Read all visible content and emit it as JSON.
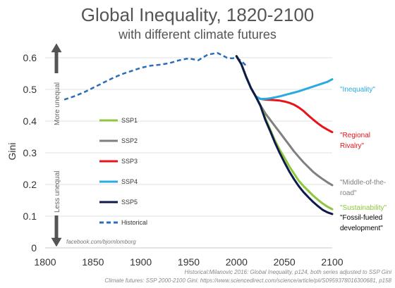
{
  "chart_data": {
    "type": "line",
    "title": "Global Inequality, 1820-2100",
    "subtitle": "with different climate futures",
    "ylabel": "Gini",
    "xlim": [
      1800,
      2100
    ],
    "ylim": [
      0,
      0.6
    ],
    "x_ticks": [
      1800,
      1850,
      1900,
      1950,
      2000,
      2050,
      2100
    ],
    "y_ticks": [
      0,
      0.1,
      0.2,
      0.3,
      0.4,
      0.5,
      0.6
    ],
    "y_tick_labels": [
      "0",
      "0.1",
      "0.2",
      "0.3",
      "0.4",
      "0.5",
      "0.6"
    ],
    "arrow_labels": {
      "up": "More unequal",
      "down": "Less unequal"
    },
    "credit": "facebook.com/bjornlomborg",
    "sources": [
      "Historical:Milanovic 2016: Global Inequality, p124, both series adjusted to SSP Gini",
      "Climate futures: SSP 2000-2100 Gini: https://www.sciencedirect.com/science/article/pii/S0959378016300681, p158"
    ],
    "legend_position": "center-left",
    "series": [
      {
        "name": "SSP1",
        "color": "#8dc63f",
        "style": "solid",
        "annotation": "\"Sustainability\"",
        "points": [
          [
            2000,
            0.605
          ],
          [
            2005,
            0.58
          ],
          [
            2010,
            0.54
          ],
          [
            2015,
            0.505
          ],
          [
            2020,
            0.478
          ],
          [
            2025,
            0.45
          ],
          [
            2030,
            0.41
          ],
          [
            2035,
            0.375
          ],
          [
            2040,
            0.34
          ],
          [
            2045,
            0.31
          ],
          [
            2050,
            0.285
          ],
          [
            2055,
            0.258
          ],
          [
            2060,
            0.235
          ],
          [
            2065,
            0.212
          ],
          [
            2070,
            0.195
          ],
          [
            2075,
            0.18
          ],
          [
            2080,
            0.165
          ],
          [
            2085,
            0.152
          ],
          [
            2090,
            0.14
          ],
          [
            2095,
            0.13
          ],
          [
            2100,
            0.122
          ]
        ]
      },
      {
        "name": "SSP2",
        "color": "#808080",
        "style": "solid",
        "annotation": "\"Middle-of-the-road\"",
        "points": [
          [
            2000,
            0.605
          ],
          [
            2005,
            0.58
          ],
          [
            2010,
            0.54
          ],
          [
            2015,
            0.505
          ],
          [
            2020,
            0.478
          ],
          [
            2025,
            0.45
          ],
          [
            2030,
            0.425
          ],
          [
            2035,
            0.405
          ],
          [
            2040,
            0.385
          ],
          [
            2045,
            0.365
          ],
          [
            2050,
            0.345
          ],
          [
            2055,
            0.325
          ],
          [
            2060,
            0.305
          ],
          [
            2065,
            0.287
          ],
          [
            2070,
            0.27
          ],
          [
            2075,
            0.255
          ],
          [
            2080,
            0.24
          ],
          [
            2085,
            0.228
          ],
          [
            2090,
            0.217
          ],
          [
            2095,
            0.207
          ],
          [
            2100,
            0.198
          ]
        ]
      },
      {
        "name": "SSP3",
        "color": "#e8131b",
        "style": "solid",
        "annotation": "\"Regional Rivalry\"",
        "points": [
          [
            2000,
            0.605
          ],
          [
            2005,
            0.58
          ],
          [
            2010,
            0.54
          ],
          [
            2015,
            0.505
          ],
          [
            2020,
            0.478
          ],
          [
            2025,
            0.47
          ],
          [
            2030,
            0.468
          ],
          [
            2035,
            0.467
          ],
          [
            2040,
            0.466
          ],
          [
            2045,
            0.465
          ],
          [
            2050,
            0.462
          ],
          [
            2055,
            0.458
          ],
          [
            2060,
            0.452
          ],
          [
            2065,
            0.443
          ],
          [
            2070,
            0.432
          ],
          [
            2075,
            0.418
          ],
          [
            2080,
            0.405
          ],
          [
            2085,
            0.393
          ],
          [
            2090,
            0.382
          ],
          [
            2095,
            0.373
          ],
          [
            2100,
            0.365
          ]
        ]
      },
      {
        "name": "SSP4",
        "color": "#29abe2",
        "style": "solid",
        "annotation": "\"Inequality\"",
        "points": [
          [
            2000,
            0.605
          ],
          [
            2005,
            0.58
          ],
          [
            2010,
            0.54
          ],
          [
            2015,
            0.505
          ],
          [
            2020,
            0.478
          ],
          [
            2025,
            0.47
          ],
          [
            2030,
            0.47
          ],
          [
            2035,
            0.472
          ],
          [
            2040,
            0.475
          ],
          [
            2045,
            0.478
          ],
          [
            2050,
            0.482
          ],
          [
            2055,
            0.486
          ],
          [
            2060,
            0.49
          ],
          [
            2065,
            0.494
          ],
          [
            2070,
            0.499
          ],
          [
            2075,
            0.504
          ],
          [
            2080,
            0.509
          ],
          [
            2085,
            0.514
          ],
          [
            2090,
            0.519
          ],
          [
            2095,
            0.524
          ],
          [
            2100,
            0.532
          ]
        ]
      },
      {
        "name": "SSP5",
        "color": "#0d1a4a",
        "style": "solid",
        "annotation": "\"Fossil-fueled development\"",
        "points": [
          [
            2000,
            0.605
          ],
          [
            2005,
            0.58
          ],
          [
            2010,
            0.54
          ],
          [
            2015,
            0.505
          ],
          [
            2020,
            0.478
          ],
          [
            2025,
            0.448
          ],
          [
            2030,
            0.405
          ],
          [
            2035,
            0.37
          ],
          [
            2040,
            0.333
          ],
          [
            2045,
            0.3
          ],
          [
            2050,
            0.27
          ],
          [
            2055,
            0.242
          ],
          [
            2060,
            0.217
          ],
          [
            2065,
            0.195
          ],
          [
            2070,
            0.176
          ],
          [
            2075,
            0.16
          ],
          [
            2080,
            0.145
          ],
          [
            2085,
            0.132
          ],
          [
            2090,
            0.12
          ],
          [
            2095,
            0.112
          ],
          [
            2100,
            0.107
          ]
        ]
      },
      {
        "name": "Historical",
        "color": "#2a6ebb",
        "style": "dashed",
        "annotation": "",
        "points": [
          [
            1820,
            0.468
          ],
          [
            1830,
            0.478
          ],
          [
            1840,
            0.49
          ],
          [
            1850,
            0.505
          ],
          [
            1860,
            0.52
          ],
          [
            1870,
            0.535
          ],
          [
            1880,
            0.548
          ],
          [
            1890,
            0.558
          ],
          [
            1900,
            0.568
          ],
          [
            1910,
            0.575
          ],
          [
            1920,
            0.578
          ],
          [
            1930,
            0.583
          ],
          [
            1940,
            0.592
          ],
          [
            1950,
            0.598
          ],
          [
            1960,
            0.592
          ],
          [
            1970,
            0.61
          ],
          [
            1980,
            0.615
          ],
          [
            1985,
            0.608
          ],
          [
            1990,
            0.6
          ],
          [
            1995,
            0.598
          ],
          [
            2000,
            0.6
          ],
          [
            2005,
            0.59
          ],
          [
            2010,
            0.575
          ]
        ]
      }
    ]
  }
}
